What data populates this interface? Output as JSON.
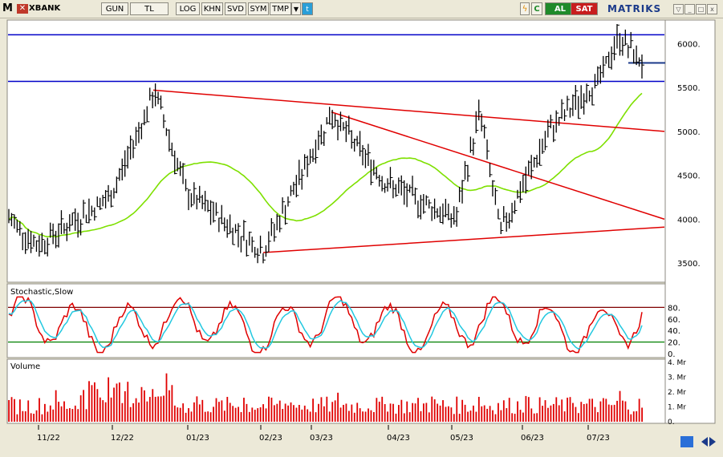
{
  "toolbar": {
    "app_icon": "M",
    "symbol": "XBANK",
    "buttons": [
      "GUN",
      "TL",
      "LOG",
      "KHN",
      "SVD",
      "SYM",
      "TMP"
    ],
    "al_label": "AL",
    "sat_label": "SAT",
    "brand": "MATRIKS",
    "icons": [
      "dropdown-arrow-icon",
      "twitter-icon",
      "lightning-icon",
      "c-icon"
    ]
  },
  "chart_data": [
    {
      "type": "ohlc",
      "title": "",
      "y_ticks": [
        3500,
        4000,
        4500,
        5000,
        5500,
        6000
      ],
      "y_tick_labels": [
        "3500.",
        "4000.",
        "4500.",
        "5000.",
        "5500.",
        "6000."
      ],
      "x_labels": [
        "11/22",
        "12/22",
        "01/23",
        "02/23",
        "03/23",
        "04/23",
        "05/23",
        "06/23",
        "07/23"
      ],
      "approx_close_path": [
        [
          "start",
          4010
        ],
        [
          "11/22",
          3700
        ],
        [
          "12/22",
          4250
        ],
        [
          "12/22-mid",
          5450
        ],
        [
          "01/23",
          4300
        ],
        [
          "02/23",
          3630
        ],
        [
          "03/23",
          5200
        ],
        [
          "04/23",
          4400
        ],
        [
          "05/23",
          4000
        ],
        [
          "05/23-mid",
          5250
        ],
        [
          "06/23-start",
          3850
        ],
        [
          "06/23",
          5050
        ],
        [
          "07/23",
          5600
        ],
        [
          "07/23-mid",
          6080
        ],
        [
          "end",
          5780
        ]
      ],
      "horizontal_lines": [
        {
          "value": 6100,
          "color": "#0000c8"
        },
        {
          "value": 5570,
          "color": "#0000c8"
        }
      ],
      "moving_average_color": "#7ee000",
      "trend_lines_color": "#e00000"
    },
    {
      "type": "line",
      "title": "Stochastic,Slow",
      "y_tick_labels": [
        "80.",
        "60.",
        "40.",
        "20.",
        "0."
      ],
      "levels": [
        80,
        20
      ],
      "series": [
        {
          "color": "#e00000"
        },
        {
          "color": "#22c8e0"
        }
      ]
    },
    {
      "type": "bar",
      "title": "Volume",
      "y_tick_labels": [
        "4. Mr",
        "3. Mr",
        "2. Mr",
        "1. Mr",
        "0."
      ],
      "ylim": [
        0,
        4
      ],
      "color": "#e00000"
    }
  ]
}
